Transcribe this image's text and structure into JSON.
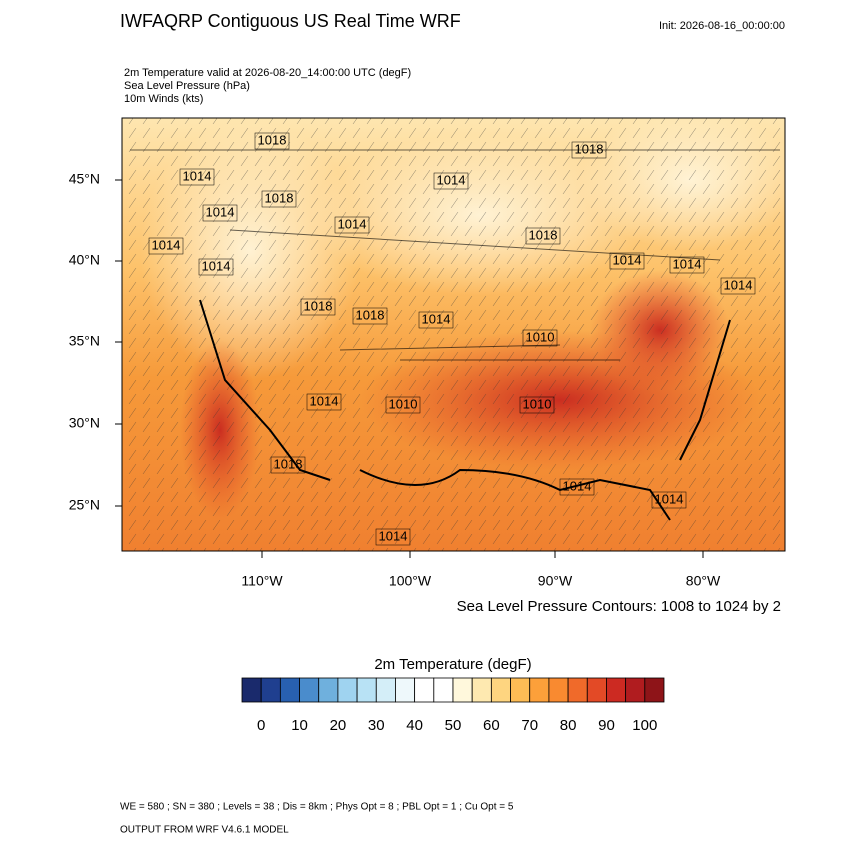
{
  "header": {
    "title": "IWFAQRP Contiguous US Real Time WRF",
    "init": "Init: 2026-08-16_00:00:00"
  },
  "fields": [
    "2m Temperature valid at 2026-08-20_14:00:00 UTC   (degF)",
    "Sea Level Pressure   (hPa)",
    "10m Winds   (kts)"
  ],
  "map": {
    "lat_labels": [
      "45°N",
      "40°N",
      "35°N",
      "30°N",
      "25°N"
    ],
    "lon_labels": [
      "110°W",
      "100°W",
      "90°W",
      "80°W"
    ],
    "contour_labels": [
      "1018",
      "1018",
      "1014",
      "1014",
      "1018",
      "1014",
      "1014",
      "1018",
      "1014",
      "1014",
      "1014",
      "1014",
      "1014",
      "1018",
      "1018",
      "1014",
      "1010",
      "1014",
      "1010",
      "1010",
      "1018",
      "1014",
      "1014",
      "1014"
    ]
  },
  "contour_note": "Sea Level Pressure Contours: 1008 to 1024 by 2",
  "colorbar": {
    "title": "2m Temperature  (degF)",
    "colors": [
      "#1a2a6c",
      "#1f3f8f",
      "#2860b0",
      "#4a8ccc",
      "#6fb0dd",
      "#9fd3f0",
      "#b8e2f5",
      "#d4eef8",
      "#eef8fb",
      "#ffffff",
      "#ffffff",
      "#fff8dc",
      "#fee9b0",
      "#fed580",
      "#fdbc55",
      "#fca03a",
      "#f98a30",
      "#f06a2a",
      "#e34a26",
      "#cc2a22",
      "#b01c1f",
      "#8e1418"
    ],
    "tick_labels": [
      "0",
      "10",
      "20",
      "30",
      "40",
      "50",
      "60",
      "70",
      "80",
      "90",
      "100"
    ]
  },
  "footer": {
    "line1": "OUTPUT FROM WRF V4.6.1 MODEL",
    "line2": "WE = 580 ; SN = 380 ; Levels = 38 ; Dis = 8km ; Phys Opt = 8 ; PBL Opt = 1 ; Cu Opt = 5"
  }
}
